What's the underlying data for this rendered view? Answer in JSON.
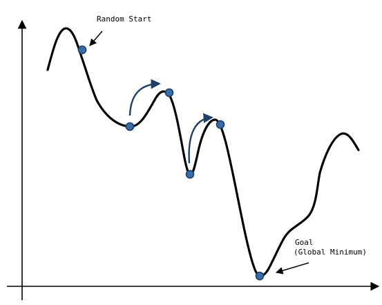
{
  "diagram": {
    "annotations": {
      "random_start": "Random Start",
      "goal_line1": "Goal",
      "goal_line2": "(Global Minimum)"
    },
    "colors": {
      "curve": "#000000",
      "ball_fill": "#3a6ca8",
      "ball_stroke": "#1c3d66",
      "jump_arrow": "#1f3f66",
      "axes": "#000000",
      "background": "#ffffff"
    },
    "icons": {
      "ball": "blue-ball-icon",
      "jump": "curved-arrow-icon",
      "pointer": "straight-arrow-icon"
    }
  }
}
